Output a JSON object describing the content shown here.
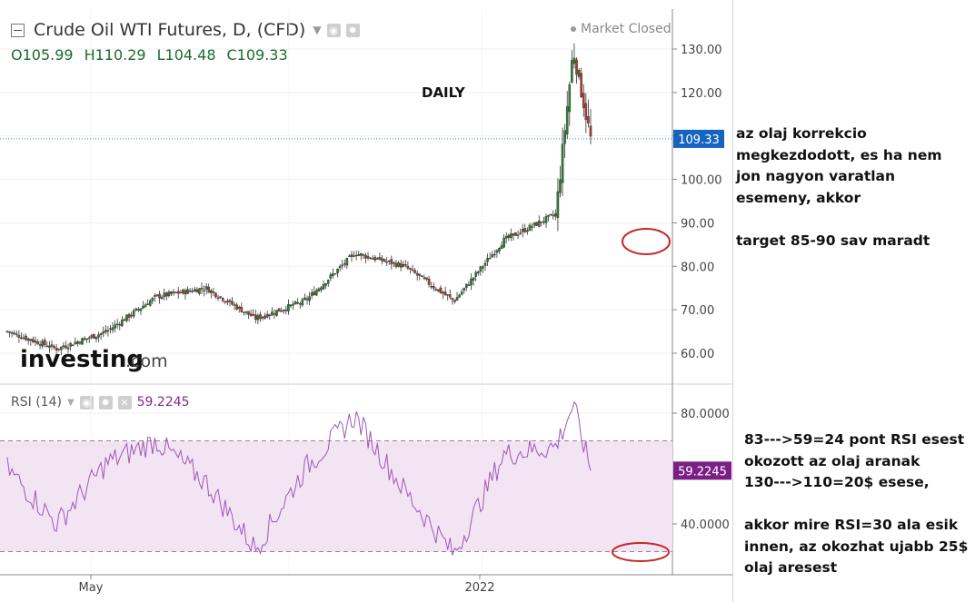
{
  "header": {
    "title": "Crude Oil WTI Futures, D, (CFD)",
    "market_status": "Market Closed",
    "ohlc": {
      "o_label": "O",
      "o": "105.99",
      "h_label": "H",
      "h": "110.29",
      "l_label": "L",
      "l": "104.48",
      "c_label": "C",
      "c": "109.33"
    }
  },
  "watermark": {
    "brand": "investing",
    "suffix": ".com"
  },
  "chart_label": "DAILY",
  "rsi": {
    "label": "RSI (14)",
    "value": "59.2245"
  },
  "annotations": {
    "top": [
      "az olaj korrekcio",
      "megkezdodott, es ha nem",
      "jon nagyon varatlan",
      "esemeny, akkor",
      "",
      "target 85-90 sav maradt"
    ],
    "bottom": [
      "83--->59=24 pont RSI esest",
      "okozott az olaj aranak",
      "130--->110=20$ esese,",
      "",
      "akkor mire RSI=30 ala esik",
      "innen, az okozhat ujabb 25$",
      "olaj aresest"
    ]
  },
  "colors": {
    "up": "#2e7d32",
    "down": "#b03a2e",
    "rsi_line": "#9b59b6",
    "rsi_band": "#f3e4f3",
    "price_tag": "#1565c0",
    "rsi_tag": "#7b1f86",
    "circle": "#c62828"
  },
  "chart_data": [
    {
      "type": "candlestick",
      "title": "Crude Oil WTI Futures, D, (CFD)",
      "x_ticks": [
        "May",
        "2022"
      ],
      "y_ticks": [
        "60.00",
        "70.00",
        "80.00",
        "90.00",
        "100.00",
        "110.00",
        "120.00",
        "130.00"
      ],
      "ylim": [
        56,
        132
      ],
      "last_price": "109.33",
      "approx_close_path": [
        {
          "date": "2021-03",
          "close": 65
        },
        {
          "date": "2021-04",
          "close": 61
        },
        {
          "date": "2021-05",
          "close": 65
        },
        {
          "date": "2021-06",
          "close": 73
        },
        {
          "date": "2021-07",
          "close": 75
        },
        {
          "date": "2021-08",
          "close": 68
        },
        {
          "date": "2021-09",
          "close": 72
        },
        {
          "date": "2021-10",
          "close": 83
        },
        {
          "date": "2021-11",
          "close": 80
        },
        {
          "date": "2021-12",
          "close": 72
        },
        {
          "date": "2022-01",
          "close": 86
        },
        {
          "date": "2022-02",
          "close": 92
        },
        {
          "date": "2022-03-08",
          "close": 130
        },
        {
          "date": "2022-03-10",
          "close": 109.33
        }
      ]
    },
    {
      "type": "line",
      "title": "RSI (14)",
      "y_ticks": [
        "40.0000",
        "80.0000"
      ],
      "ylim": [
        25,
        85
      ],
      "bands": [
        30,
        70
      ],
      "last_value": "59.2245",
      "approx_path": [
        {
          "date": "2021-03",
          "rsi": 60
        },
        {
          "date": "2021-04",
          "rsi": 40
        },
        {
          "date": "2021-05",
          "rsi": 62
        },
        {
          "date": "2021-06",
          "rsi": 70
        },
        {
          "date": "2021-07",
          "rsi": 55
        },
        {
          "date": "2021-08",
          "rsi": 31
        },
        {
          "date": "2021-09",
          "rsi": 60
        },
        {
          "date": "2021-10",
          "rsi": 79
        },
        {
          "date": "2021-11",
          "rsi": 52
        },
        {
          "date": "2021-12",
          "rsi": 29
        },
        {
          "date": "2022-01",
          "rsi": 65
        },
        {
          "date": "2022-02",
          "rsi": 68
        },
        {
          "date": "2022-03-08",
          "rsi": 83
        },
        {
          "date": "2022-03-10",
          "rsi": 59.2245
        }
      ]
    }
  ]
}
